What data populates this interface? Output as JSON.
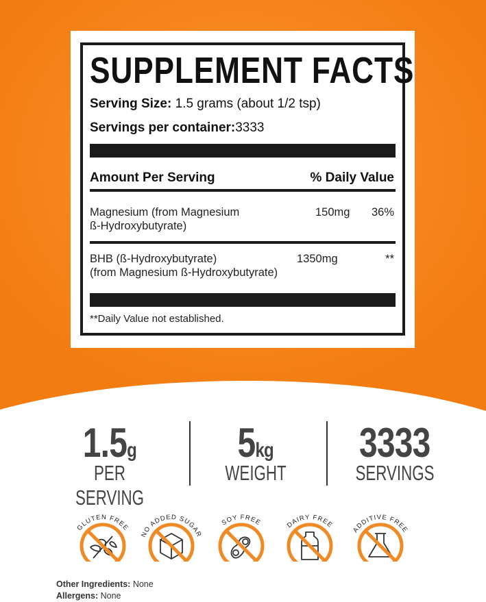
{
  "colors": {
    "orange": "#f7861a",
    "dark": "#1a1a1a",
    "stat_text": "#444444"
  },
  "facts": {
    "title": "SUPPLEMENT FACTS",
    "serving_size_label": "Serving Size:",
    "serving_size_value": "1.5 grams (about 1/2 tsp)",
    "servings_label": "Servings per container:",
    "servings_value": "3333",
    "amount_header": "Amount Per Serving",
    "dv_header": "% Daily Value",
    "nutrients": [
      {
        "name_line1": "Magnesium (from Magnesium",
        "name_line2": "ß-Hydroxybutyrate)",
        "amount": "150mg",
        "dv": "36%"
      },
      {
        "name_line1": "BHB (ß-Hydroxybutyrate)",
        "name_line2": "(from Magnesium ß-Hydroxybutyrate)",
        "amount": "1350mg",
        "dv": "**"
      }
    ],
    "footnote": "**Daily Value not established."
  },
  "stats": [
    {
      "value": "1.5",
      "unit": "g",
      "label": "PER SERVING"
    },
    {
      "value": "5",
      "unit": "kg",
      "label": "WEIGHT"
    },
    {
      "value": "3333",
      "unit": "",
      "label": "SERVINGS"
    }
  ],
  "badges": [
    {
      "label": "GLUTEN FREE",
      "icon": "wheat-icon"
    },
    {
      "label": "NO ADDED SUGAR",
      "icon": "sugar-cube-icon"
    },
    {
      "label": "SOY FREE",
      "icon": "soybean-icon"
    },
    {
      "label": "DAIRY FREE",
      "icon": "milk-bottle-icon"
    },
    {
      "label": "ADDITIVE FREE",
      "icon": "flask-icon"
    }
  ],
  "footer": {
    "ingredients_label": "Other Ingredients:",
    "ingredients_value": "None",
    "allergens_label": "Allergens:",
    "allergens_value": "None"
  }
}
